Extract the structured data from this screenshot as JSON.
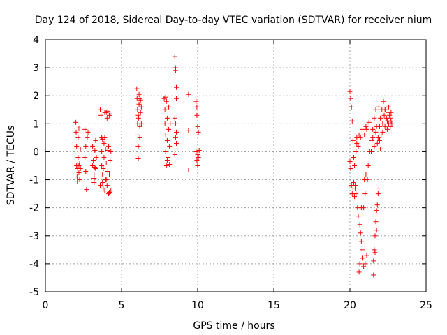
{
  "chart_data": {
    "type": "scatter",
    "title": "Day 124 of 2018, Sidereal Day-to-day VTEC variation (SDTVAR) for receiver nium",
    "xlabel": "GPS time / hours",
    "ylabel": "SDTVAR / TECUs",
    "xlim": [
      0,
      25
    ],
    "ylim": [
      -5,
      4
    ],
    "x_ticks": [
      0,
      5,
      10,
      15,
      20,
      25
    ],
    "y_ticks": [
      -5,
      -4,
      -3,
      -2,
      -1,
      0,
      1,
      2,
      3,
      4
    ],
    "grid": true,
    "marker": "+",
    "colors": {
      "points": "#ff0000",
      "grid": "#a0a0a0",
      "axes": "#000000"
    },
    "series": [
      {
        "values": [
          [
            2.0,
            1.05
          ],
          [
            2.02,
            0.7
          ],
          [
            2.05,
            0.2
          ],
          [
            2.05,
            -0.5
          ],
          [
            2.08,
            -0.9
          ],
          [
            2.1,
            -1.05
          ],
          [
            2.12,
            -0.6
          ],
          [
            2.15,
            -0.2
          ],
          [
            2.15,
            0.5
          ],
          [
            2.2,
            0.85
          ],
          [
            2.2,
            -0.75
          ],
          [
            2.25,
            -1.0
          ],
          [
            2.25,
            -0.4
          ],
          [
            2.3,
            0.1
          ],
          [
            2.3,
            -0.6
          ],
          [
            2.2,
            -0.5
          ],
          [
            2.6,
            0.8
          ],
          [
            2.65,
            0.2
          ],
          [
            2.65,
            -0.7
          ],
          [
            2.7,
            -1.35
          ],
          [
            2.75,
            0.5
          ],
          [
            2.8,
            0.7
          ],
          [
            2.6,
            -0.2
          ],
          [
            3.1,
            0.2
          ],
          [
            3.15,
            -0.3
          ],
          [
            3.2,
            -0.95
          ],
          [
            3.2,
            -1.1
          ],
          [
            3.25,
            -0.55
          ],
          [
            3.25,
            0.05
          ],
          [
            3.3,
            0.4
          ],
          [
            3.3,
            -0.6
          ],
          [
            3.35,
            -0.2
          ],
          [
            3.1,
            -0.5
          ],
          [
            3.2,
            -0.8
          ],
          [
            3.6,
            1.5
          ],
          [
            3.65,
            1.3
          ],
          [
            3.7,
            0.5
          ],
          [
            3.7,
            0.0
          ],
          [
            3.7,
            -0.5
          ],
          [
            3.75,
            -0.8
          ],
          [
            3.75,
            -1.1
          ],
          [
            3.8,
            -1.3
          ],
          [
            3.8,
            -0.6
          ],
          [
            3.85,
            0.3
          ],
          [
            3.9,
            1.4
          ],
          [
            3.9,
            -1.4
          ],
          [
            3.95,
            -1.0
          ],
          [
            3.95,
            0.1
          ],
          [
            4.0,
            -0.4
          ],
          [
            4.0,
            1.4
          ],
          [
            4.05,
            1.2
          ],
          [
            4.05,
            -1.2
          ],
          [
            4.1,
            -0.7
          ],
          [
            4.1,
            1.45
          ],
          [
            4.15,
            0.2
          ],
          [
            4.15,
            -1.5
          ],
          [
            4.2,
            1.3
          ],
          [
            4.2,
            -0.8
          ],
          [
            4.25,
            -0.3
          ],
          [
            4.25,
            1.35
          ],
          [
            4.3,
            -1.4
          ],
          [
            4.3,
            0.0
          ],
          [
            3.6,
            -1.2
          ],
          [
            3.65,
            -0.9
          ],
          [
            3.75,
            0.45
          ],
          [
            3.85,
            -0.2
          ],
          [
            4.0,
            -1.0
          ],
          [
            4.1,
            0.05
          ],
          [
            4.2,
            -1.45
          ],
          [
            3.9,
            0.5
          ],
          [
            6.0,
            2.25
          ],
          [
            6.02,
            1.9
          ],
          [
            6.05,
            1.5
          ],
          [
            6.05,
            1.0
          ],
          [
            6.08,
            0.6
          ],
          [
            6.1,
            0.2
          ],
          [
            6.1,
            -0.25
          ],
          [
            6.12,
            1.2
          ],
          [
            6.15,
            1.7
          ],
          [
            6.15,
            2.05
          ],
          [
            6.2,
            0.9
          ],
          [
            6.2,
            0.5
          ],
          [
            6.25,
            1.4
          ],
          [
            6.25,
            1.85
          ],
          [
            6.3,
            1.0
          ],
          [
            6.3,
            1.6
          ],
          [
            6.1,
            1.3
          ],
          [
            6.2,
            1.9
          ],
          [
            7.8,
            1.9
          ],
          [
            7.85,
            1.5
          ],
          [
            7.85,
            1.0
          ],
          [
            7.9,
            0.6
          ],
          [
            7.9,
            0.0
          ],
          [
            7.95,
            -0.5
          ],
          [
            7.95,
            1.8
          ],
          [
            8.0,
            1.2
          ],
          [
            8.0,
            0.4
          ],
          [
            8.05,
            -0.2
          ],
          [
            8.05,
            -0.4
          ],
          [
            8.1,
            1.6
          ],
          [
            8.1,
            0.8
          ],
          [
            8.15,
            0.2
          ],
          [
            8.15,
            -0.45
          ],
          [
            8.2,
            1.0
          ],
          [
            7.9,
            1.95
          ],
          [
            8.0,
            -0.3
          ],
          [
            8.5,
            3.4
          ],
          [
            8.55,
            3.0
          ],
          [
            8.55,
            2.9
          ],
          [
            8.6,
            2.3
          ],
          [
            8.6,
            1.9
          ],
          [
            8.5,
            1.2
          ],
          [
            8.55,
            1.0
          ],
          [
            8.6,
            0.7
          ],
          [
            8.6,
            0.3
          ],
          [
            8.65,
            0.1
          ],
          [
            8.5,
            -0.1
          ],
          [
            8.55,
            0.5
          ],
          [
            9.4,
            2.05
          ],
          [
            9.4,
            0.75
          ],
          [
            9.4,
            -0.65
          ],
          [
            9.9,
            1.8
          ],
          [
            9.95,
            1.3
          ],
          [
            10.0,
            0.9
          ],
          [
            10.05,
            0.7
          ],
          [
            9.9,
            0.0
          ],
          [
            9.95,
            -0.3
          ],
          [
            10.0,
            -0.5
          ],
          [
            10.05,
            -0.2
          ],
          [
            10.1,
            0.05
          ],
          [
            9.95,
            1.6
          ],
          [
            10.0,
            -0.1
          ],
          [
            20.0,
            2.15
          ],
          [
            20.05,
            1.9
          ],
          [
            20.1,
            1.6
          ],
          [
            20.15,
            1.1
          ],
          [
            20.2,
            0.4
          ],
          [
            20.25,
            -0.2
          ],
          [
            20.3,
            -0.5
          ],
          [
            20.0,
            -0.35
          ],
          [
            20.05,
            -0.6
          ],
          [
            20.1,
            -1.2
          ],
          [
            20.15,
            -1.5
          ],
          [
            20.2,
            -1.3
          ],
          [
            20.25,
            -1.1
          ],
          [
            20.3,
            -1.6
          ],
          [
            20.35,
            -1.2
          ],
          [
            20.4,
            0.0
          ],
          [
            20.45,
            0.3
          ],
          [
            20.5,
            -2.0
          ],
          [
            20.55,
            -2.3
          ],
          [
            20.6,
            0.6
          ],
          [
            20.65,
            -2.6
          ],
          [
            20.7,
            -2.9
          ],
          [
            20.75,
            -3.2
          ],
          [
            20.8,
            0.8
          ],
          [
            20.8,
            -3.5
          ],
          [
            20.85,
            -3.8
          ],
          [
            20.9,
            -4.1
          ],
          [
            20.95,
            0.6
          ],
          [
            21.0,
            -4.0
          ],
          [
            21.05,
            0.9
          ],
          [
            21.1,
            -3.7
          ],
          [
            21.15,
            -1.0
          ],
          [
            21.2,
            -0.5
          ],
          [
            21.25,
            1.05
          ],
          [
            21.3,
            0.0
          ],
          [
            20.6,
            -4.3
          ],
          [
            20.65,
            -4.0
          ],
          [
            20.7,
            0.5
          ],
          [
            20.9,
            -2.0
          ],
          [
            21.0,
            -1.5
          ],
          [
            21.05,
            -0.8
          ],
          [
            20.55,
            0.2
          ],
          [
            20.4,
            -1.5
          ],
          [
            20.35,
            -1.3
          ],
          [
            20.45,
            0.5
          ],
          [
            20.75,
            -2.0
          ],
          [
            20.95,
            -1.0
          ],
          [
            21.1,
            0.8
          ],
          [
            21.4,
            0.0
          ],
          [
            21.45,
            0.4
          ],
          [
            21.5,
            0.8
          ],
          [
            21.55,
            -3.9
          ],
          [
            21.55,
            -4.4
          ],
          [
            21.6,
            -3.5
          ],
          [
            21.6,
            1.2
          ],
          [
            21.65,
            -3.0
          ],
          [
            21.7,
            -2.5
          ],
          [
            21.7,
            1.5
          ],
          [
            21.75,
            -2.1
          ],
          [
            21.8,
            -1.9
          ],
          [
            21.8,
            0.3
          ],
          [
            21.85,
            0.5
          ],
          [
            21.85,
            -1.5
          ],
          [
            21.9,
            -1.3
          ],
          [
            21.9,
            1.6
          ],
          [
            21.95,
            0.9
          ],
          [
            22.0,
            1.2
          ],
          [
            22.05,
            0.6
          ],
          [
            22.1,
            1.5
          ],
          [
            22.15,
            1.0
          ],
          [
            22.2,
            1.8
          ],
          [
            22.25,
            1.3
          ],
          [
            22.3,
            0.9
          ],
          [
            22.35,
            1.5
          ],
          [
            22.4,
            1.2
          ],
          [
            22.45,
            1.1
          ],
          [
            22.5,
            1.4
          ],
          [
            22.55,
            1.0
          ],
          [
            22.6,
            1.3
          ],
          [
            22.65,
            1.2
          ],
          [
            22.7,
            1.1
          ],
          [
            22.75,
            1.0
          ],
          [
            21.5,
            0.5
          ],
          [
            21.6,
            0.2
          ],
          [
            21.7,
            0.7
          ],
          [
            21.75,
            0.9
          ],
          [
            21.95,
            0.4
          ],
          [
            22.0,
            0.1
          ],
          [
            22.15,
            0.7
          ],
          [
            22.3,
            1.5
          ],
          [
            22.45,
            0.8
          ],
          [
            22.55,
            1.6
          ],
          [
            22.65,
            0.9
          ],
          [
            22.7,
            1.4
          ],
          [
            21.65,
            -3.6
          ],
          [
            21.75,
            -2.8
          ]
        ]
      }
    ]
  }
}
